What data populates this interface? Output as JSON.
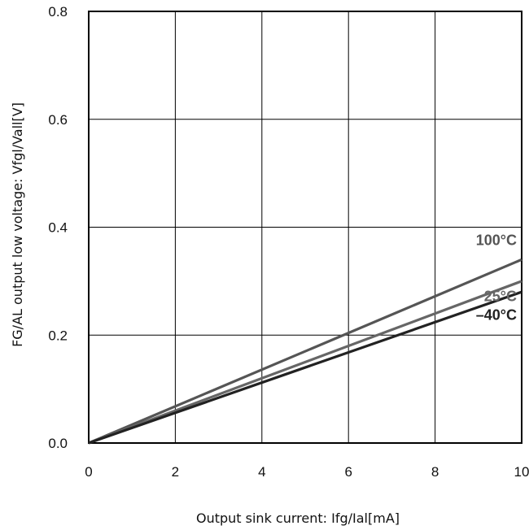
{
  "chart_data": {
    "type": "line",
    "title": "",
    "xlabel": "Output sink current: Ifg/Ial[mA]",
    "ylabel": "FG/AL output low voltage: Vfgl/Vall[V]",
    "xlim": [
      0,
      10
    ],
    "ylim": [
      0,
      0.8
    ],
    "xticks": [
      "0",
      "2",
      "4",
      "6",
      "8",
      "10"
    ],
    "yticks": [
      "0.0",
      "0.2",
      "0.4",
      "0.6",
      "0.8"
    ],
    "grid": true,
    "legend": "none",
    "series": [
      {
        "name": "100°C",
        "color": "#555555",
        "x": [
          0,
          10
        ],
        "y": [
          0,
          0.34
        ]
      },
      {
        "name": "25°C",
        "color": "#666666",
        "x": [
          0,
          10
        ],
        "y": [
          0,
          0.3
        ]
      },
      {
        "name": "–40°C",
        "color": "#222222",
        "x": [
          0,
          10
        ],
        "y": [
          0,
          0.28
        ]
      }
    ]
  }
}
